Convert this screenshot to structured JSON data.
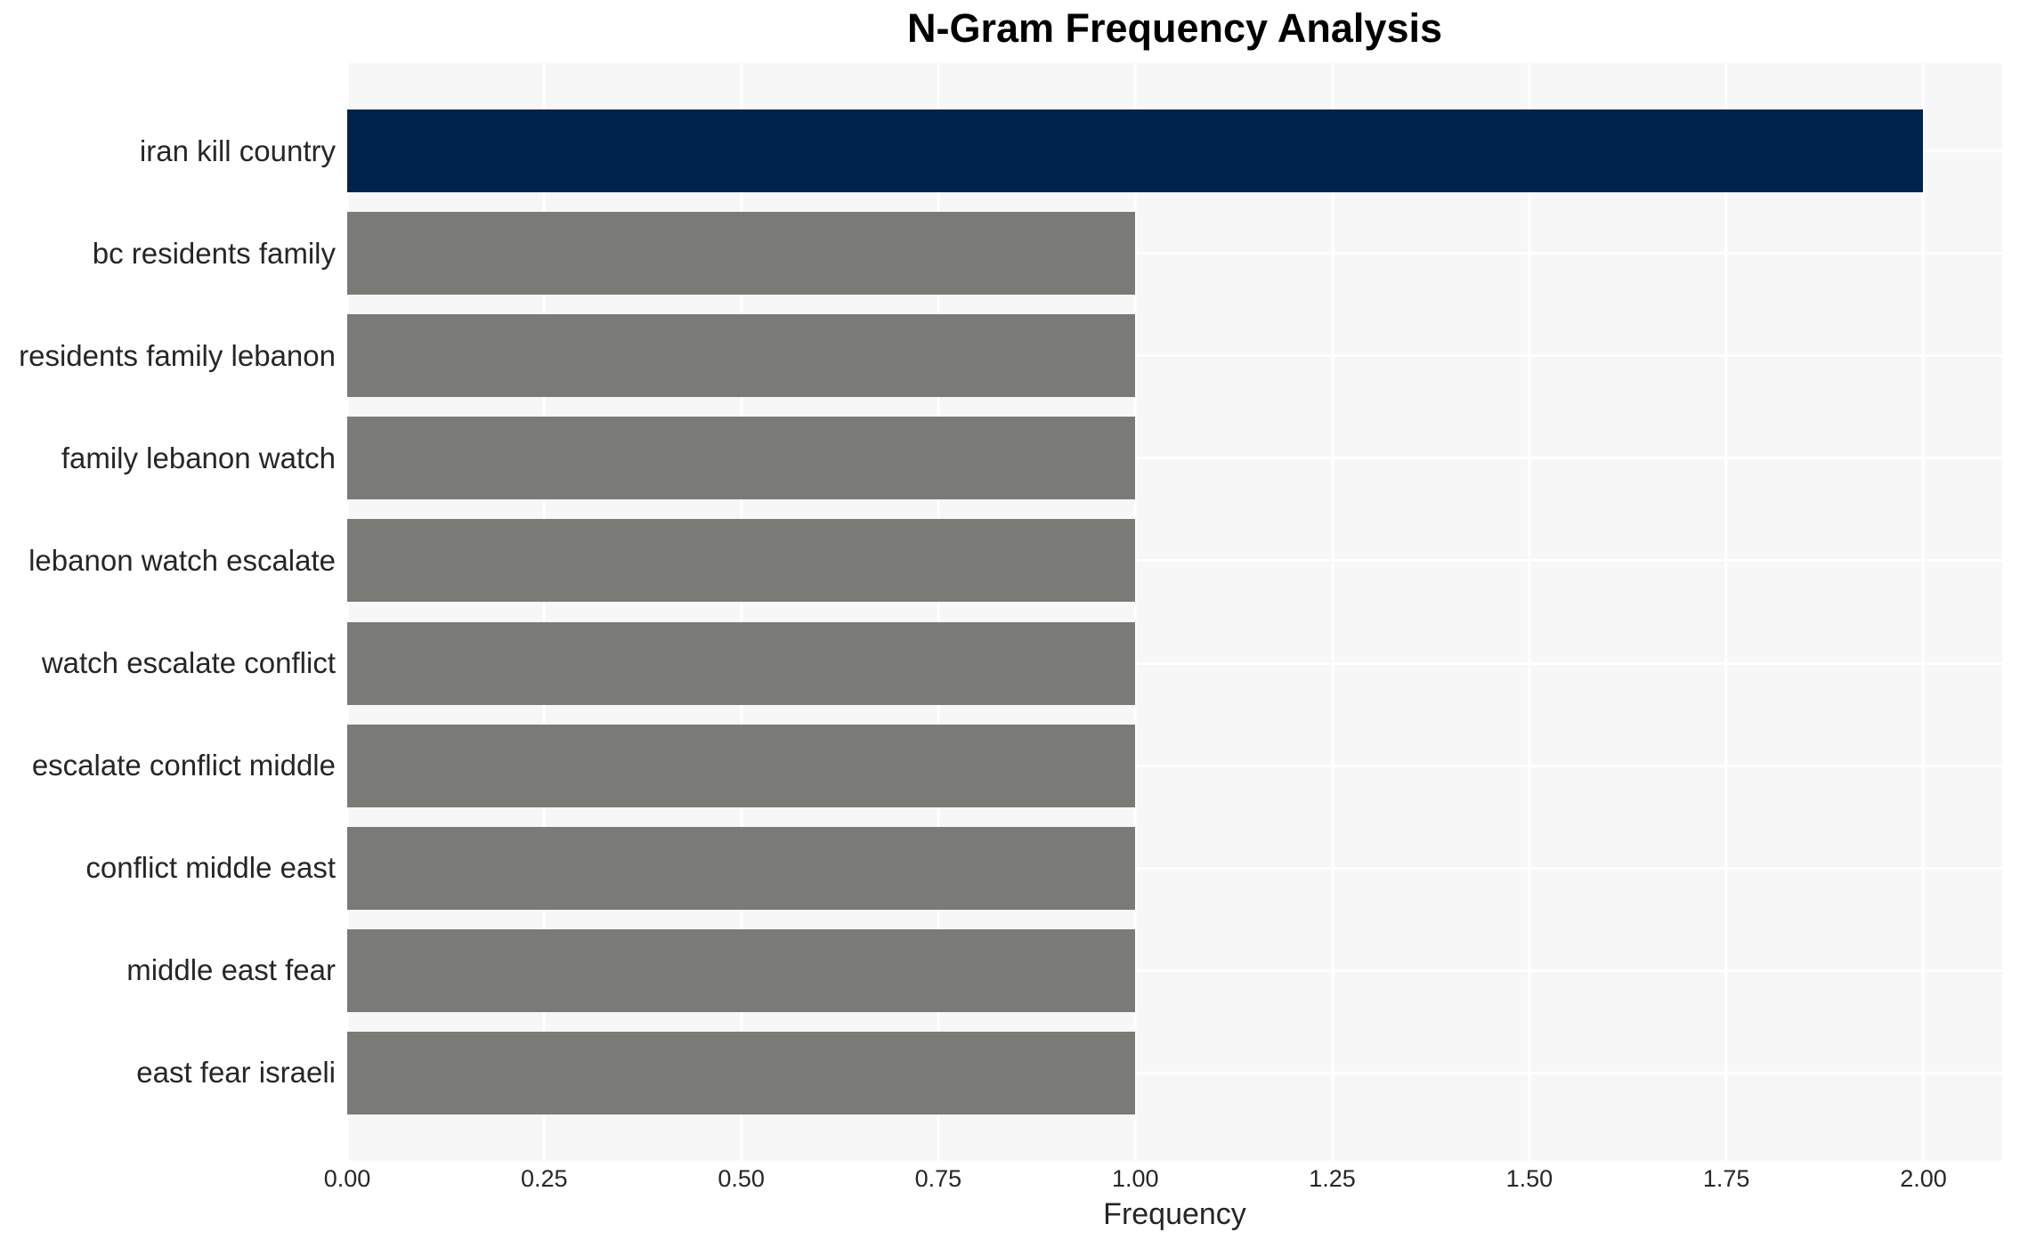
{
  "chart_data": {
    "type": "bar",
    "orientation": "horizontal",
    "title": "N-Gram Frequency Analysis",
    "xlabel": "Frequency",
    "ylabel": "",
    "categories": [
      "iran kill country",
      "bc residents family",
      "residents family lebanon",
      "family lebanon watch",
      "lebanon watch escalate",
      "watch escalate conflict",
      "escalate conflict middle",
      "conflict middle east",
      "middle east fear",
      "east fear israeli"
    ],
    "values": [
      2,
      1,
      1,
      1,
      1,
      1,
      1,
      1,
      1,
      1
    ],
    "highlight_index": 0,
    "xlim": [
      0,
      2.1
    ],
    "xticks": {
      "labels": [
        "0.00",
        "0.25",
        "0.50",
        "0.75",
        "1.00",
        "1.25",
        "1.50",
        "1.75",
        "2.00"
      ],
      "values": [
        0,
        0.25,
        0.5,
        0.75,
        1.0,
        1.25,
        1.5,
        1.75,
        2.0
      ]
    },
    "grid": true,
    "legend": false,
    "colors": {
      "highlight_bar": "#00234e",
      "default_bar": "#7a7a77",
      "plot_background": "#f7f7f7",
      "gridline": "#ffffff",
      "tick_text": "#262626",
      "title_text": "#000000"
    }
  }
}
